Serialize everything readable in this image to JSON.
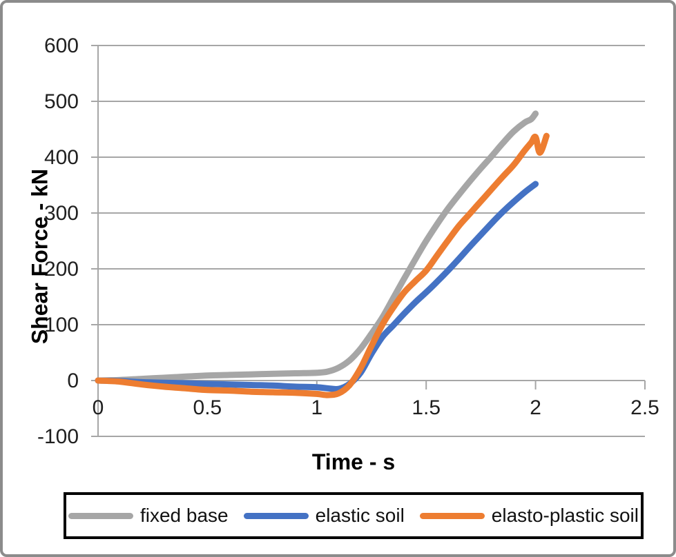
{
  "figure": {
    "background": "#ffffff",
    "outer_border_color": "#8c8c8c",
    "legend_border_color": "#000000"
  },
  "chart_data": {
    "type": "line",
    "title": "",
    "xlabel": "Time - s",
    "ylabel": "Shear Force - kN",
    "xlim": [
      0,
      2.5
    ],
    "ylim": [
      -100,
      600
    ],
    "x_ticks": [
      0,
      0.5,
      1,
      1.5,
      2,
      2.5
    ],
    "x_tick_labels": [
      "0",
      "0.5",
      "1",
      "1.5",
      "2",
      "2.5"
    ],
    "y_ticks": [
      -100,
      0,
      100,
      200,
      300,
      400,
      500,
      600
    ],
    "y_tick_labels": [
      "-100",
      "0",
      "100",
      "200",
      "300",
      "400",
      "500",
      "600"
    ],
    "grid": "horizontal",
    "gridline_color": "#a6a6a6",
    "axis_color": "#a6a6a6",
    "legend_position": "bottom",
    "series": [
      {
        "name": "fixed base",
        "color": "#a6a6a6",
        "points": [
          [
            0,
            0
          ],
          [
            0.1,
            1
          ],
          [
            0.2,
            3
          ],
          [
            0.3,
            5
          ],
          [
            0.4,
            7
          ],
          [
            0.5,
            9
          ],
          [
            0.6,
            10
          ],
          [
            0.7,
            11
          ],
          [
            0.8,
            12
          ],
          [
            0.9,
            13
          ],
          [
            1.0,
            14
          ],
          [
            1.05,
            16
          ],
          [
            1.1,
            23
          ],
          [
            1.15,
            36
          ],
          [
            1.2,
            57
          ],
          [
            1.25,
            84
          ],
          [
            1.3,
            113
          ],
          [
            1.35,
            148
          ],
          [
            1.4,
            183
          ],
          [
            1.45,
            217
          ],
          [
            1.5,
            250
          ],
          [
            1.55,
            280
          ],
          [
            1.6,
            308
          ],
          [
            1.65,
            333
          ],
          [
            1.7,
            357
          ],
          [
            1.75,
            380
          ],
          [
            1.8,
            402
          ],
          [
            1.85,
            425
          ],
          [
            1.9,
            446
          ],
          [
            1.95,
            462
          ],
          [
            1.98,
            468
          ],
          [
            2.0,
            478
          ]
        ]
      },
      {
        "name": "elastic soil",
        "color": "#4472c4",
        "points": [
          [
            0,
            0
          ],
          [
            0.1,
            -1
          ],
          [
            0.2,
            -3
          ],
          [
            0.3,
            -4
          ],
          [
            0.4,
            -5
          ],
          [
            0.5,
            -6
          ],
          [
            0.6,
            -7
          ],
          [
            0.7,
            -8
          ],
          [
            0.8,
            -9
          ],
          [
            0.9,
            -11
          ],
          [
            1.0,
            -12
          ],
          [
            1.05,
            -14
          ],
          [
            1.1,
            -15
          ],
          [
            1.15,
            -6
          ],
          [
            1.2,
            14
          ],
          [
            1.25,
            48
          ],
          [
            1.3,
            78
          ],
          [
            1.35,
            99
          ],
          [
            1.4,
            120
          ],
          [
            1.45,
            140
          ],
          [
            1.5,
            158
          ],
          [
            1.55,
            177
          ],
          [
            1.6,
            197
          ],
          [
            1.65,
            218
          ],
          [
            1.7,
            240
          ],
          [
            1.75,
            261
          ],
          [
            1.8,
            282
          ],
          [
            1.85,
            302
          ],
          [
            1.9,
            320
          ],
          [
            1.95,
            337
          ],
          [
            2.0,
            352
          ]
        ]
      },
      {
        "name": "elasto-plastic soil",
        "color": "#ed7d31",
        "points": [
          [
            0,
            0
          ],
          [
            0.1,
            -2
          ],
          [
            0.2,
            -7
          ],
          [
            0.3,
            -11
          ],
          [
            0.4,
            -14
          ],
          [
            0.5,
            -17
          ],
          [
            0.6,
            -18
          ],
          [
            0.7,
            -20
          ],
          [
            0.8,
            -21
          ],
          [
            0.9,
            -22
          ],
          [
            1.0,
            -24
          ],
          [
            1.05,
            -26
          ],
          [
            1.1,
            -23
          ],
          [
            1.15,
            -8
          ],
          [
            1.2,
            22
          ],
          [
            1.25,
            62
          ],
          [
            1.3,
            100
          ],
          [
            1.35,
            131
          ],
          [
            1.4,
            158
          ],
          [
            1.45,
            178
          ],
          [
            1.5,
            197
          ],
          [
            1.55,
            224
          ],
          [
            1.6,
            251
          ],
          [
            1.65,
            277
          ],
          [
            1.7,
            299
          ],
          [
            1.75,
            321
          ],
          [
            1.8,
            343
          ],
          [
            1.85,
            365
          ],
          [
            1.9,
            386
          ],
          [
            1.95,
            412
          ],
          [
            1.98,
            426
          ],
          [
            2.0,
            436
          ],
          [
            2.02,
            408
          ],
          [
            2.05,
            438
          ]
        ]
      }
    ]
  }
}
